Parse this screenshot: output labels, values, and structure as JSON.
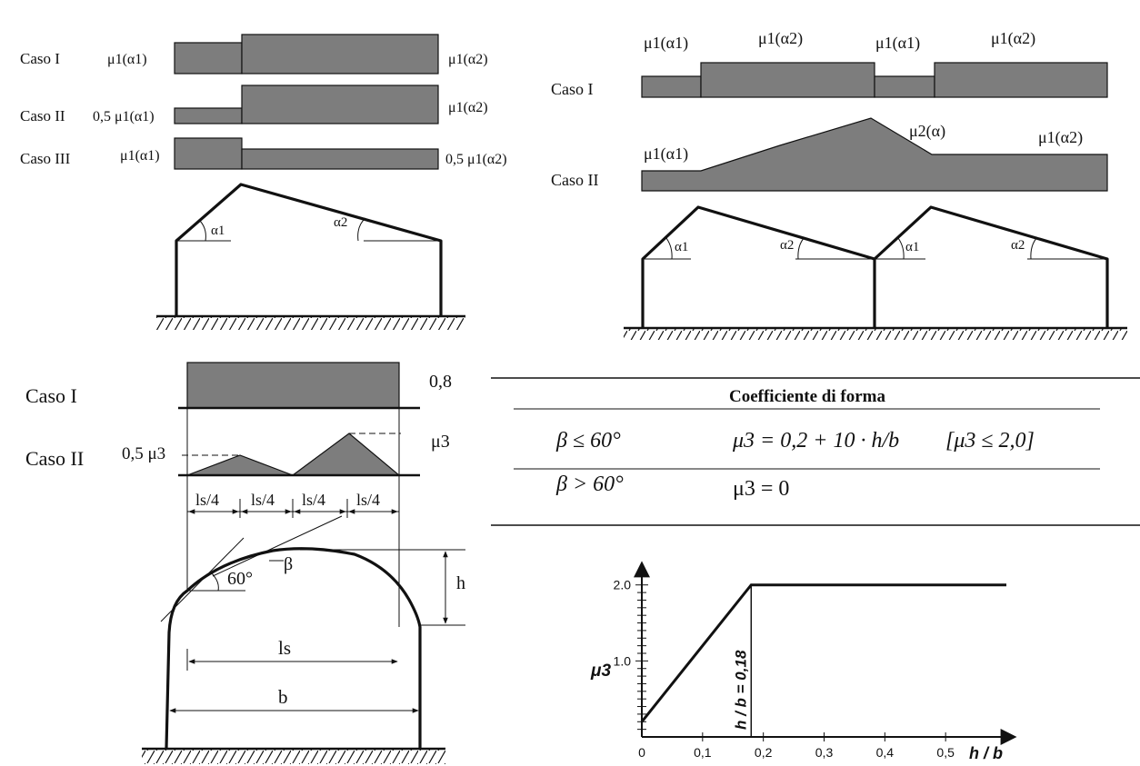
{
  "top_left": {
    "rows": [
      {
        "case": "Caso I",
        "left": "μ1(α1)",
        "right": "μ1(α2)"
      },
      {
        "case": "Caso II",
        "left": "0,5 μ1(α1)",
        "right": "μ1(α2)"
      },
      {
        "case": "Caso III",
        "left": "μ1(α1)",
        "right": "0,5 μ1(α2)"
      }
    ],
    "angle_left": "α1",
    "angle_right": "α2"
  },
  "top_right": {
    "caso1": "Caso I",
    "caso2": "Caso II",
    "caso1_labels": [
      "μ1(α1)",
      "μ1(α2)",
      "μ1(α1)",
      "μ1(α2)"
    ],
    "caso2_peak": "μ2(α)",
    "caso2_left": "μ1(α1)",
    "caso2_right": "μ1(α2)",
    "angles": [
      "α1",
      "α2",
      "α1",
      "α2"
    ]
  },
  "bottom_left": {
    "caso1": "Caso I",
    "caso1_value": "0,8",
    "caso2": "Caso II",
    "caso2_left": "0,5 μ3",
    "caso2_right": "μ3",
    "quarters": [
      "ls/4",
      "ls/4",
      "ls/4",
      "ls/4"
    ],
    "angle_60": "60°",
    "beta": "β",
    "h": "h",
    "ls": "ls",
    "b": "b"
  },
  "table": {
    "title": "Coefficiente di forma",
    "row1_cond": "β ≤ 60°",
    "row1_formula": "μ3 = 0,2 + 10 · h/b",
    "row1_limit": "[μ3 ≤ 2,0]",
    "row2_cond": "β > 60°",
    "row2_formula": "μ3 = 0"
  },
  "chart_data": {
    "type": "line",
    "x": [
      0,
      0.18,
      0.6
    ],
    "y": [
      0.2,
      2.0,
      2.0
    ],
    "xlabel": "h / b",
    "ylabel": "μ3",
    "x_ticks": [
      "0",
      "0,1",
      "0,2",
      "0,3",
      "0,4",
      "0,5"
    ],
    "y_ticks": [
      "1.0",
      "2.0"
    ],
    "annotation": "h / b = 0,18",
    "xlim": [
      0,
      0.6
    ],
    "ylim": [
      0,
      2.2
    ]
  }
}
